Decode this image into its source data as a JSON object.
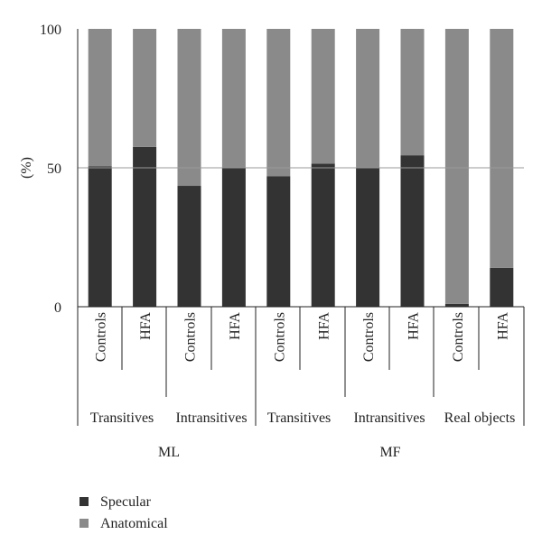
{
  "chart_data": {
    "type": "bar",
    "stacked": true,
    "percent_stacked": true,
    "ylabel": "(%)",
    "ylim": [
      0,
      100
    ],
    "yticks": [
      0,
      50,
      100
    ],
    "grid": {
      "y_at": [
        50
      ]
    },
    "categories": [
      "Controls",
      "HFA",
      "Controls",
      "HFA",
      "Controls",
      "HFA",
      "Controls",
      "HFA",
      "Controls",
      "HFA"
    ],
    "subgroups": [
      "Transitives",
      "Intransitives",
      "Transitives",
      "Intransitives",
      "Real objects"
    ],
    "groups": [
      "ML",
      "MF"
    ],
    "series": [
      {
        "name": "Specular",
        "color": "#333333",
        "values": [
          50.5,
          57.5,
          43.5,
          50,
          47,
          51.5,
          50,
          54.5,
          1,
          14
        ]
      },
      {
        "name": "Anatomical",
        "color": "#8a8a8a",
        "values": [
          49.5,
          42.5,
          56.5,
          50,
          53,
          48.5,
          50,
          45.5,
          99,
          86
        ]
      }
    ],
    "legend": {
      "placement": "bottom-left"
    }
  }
}
